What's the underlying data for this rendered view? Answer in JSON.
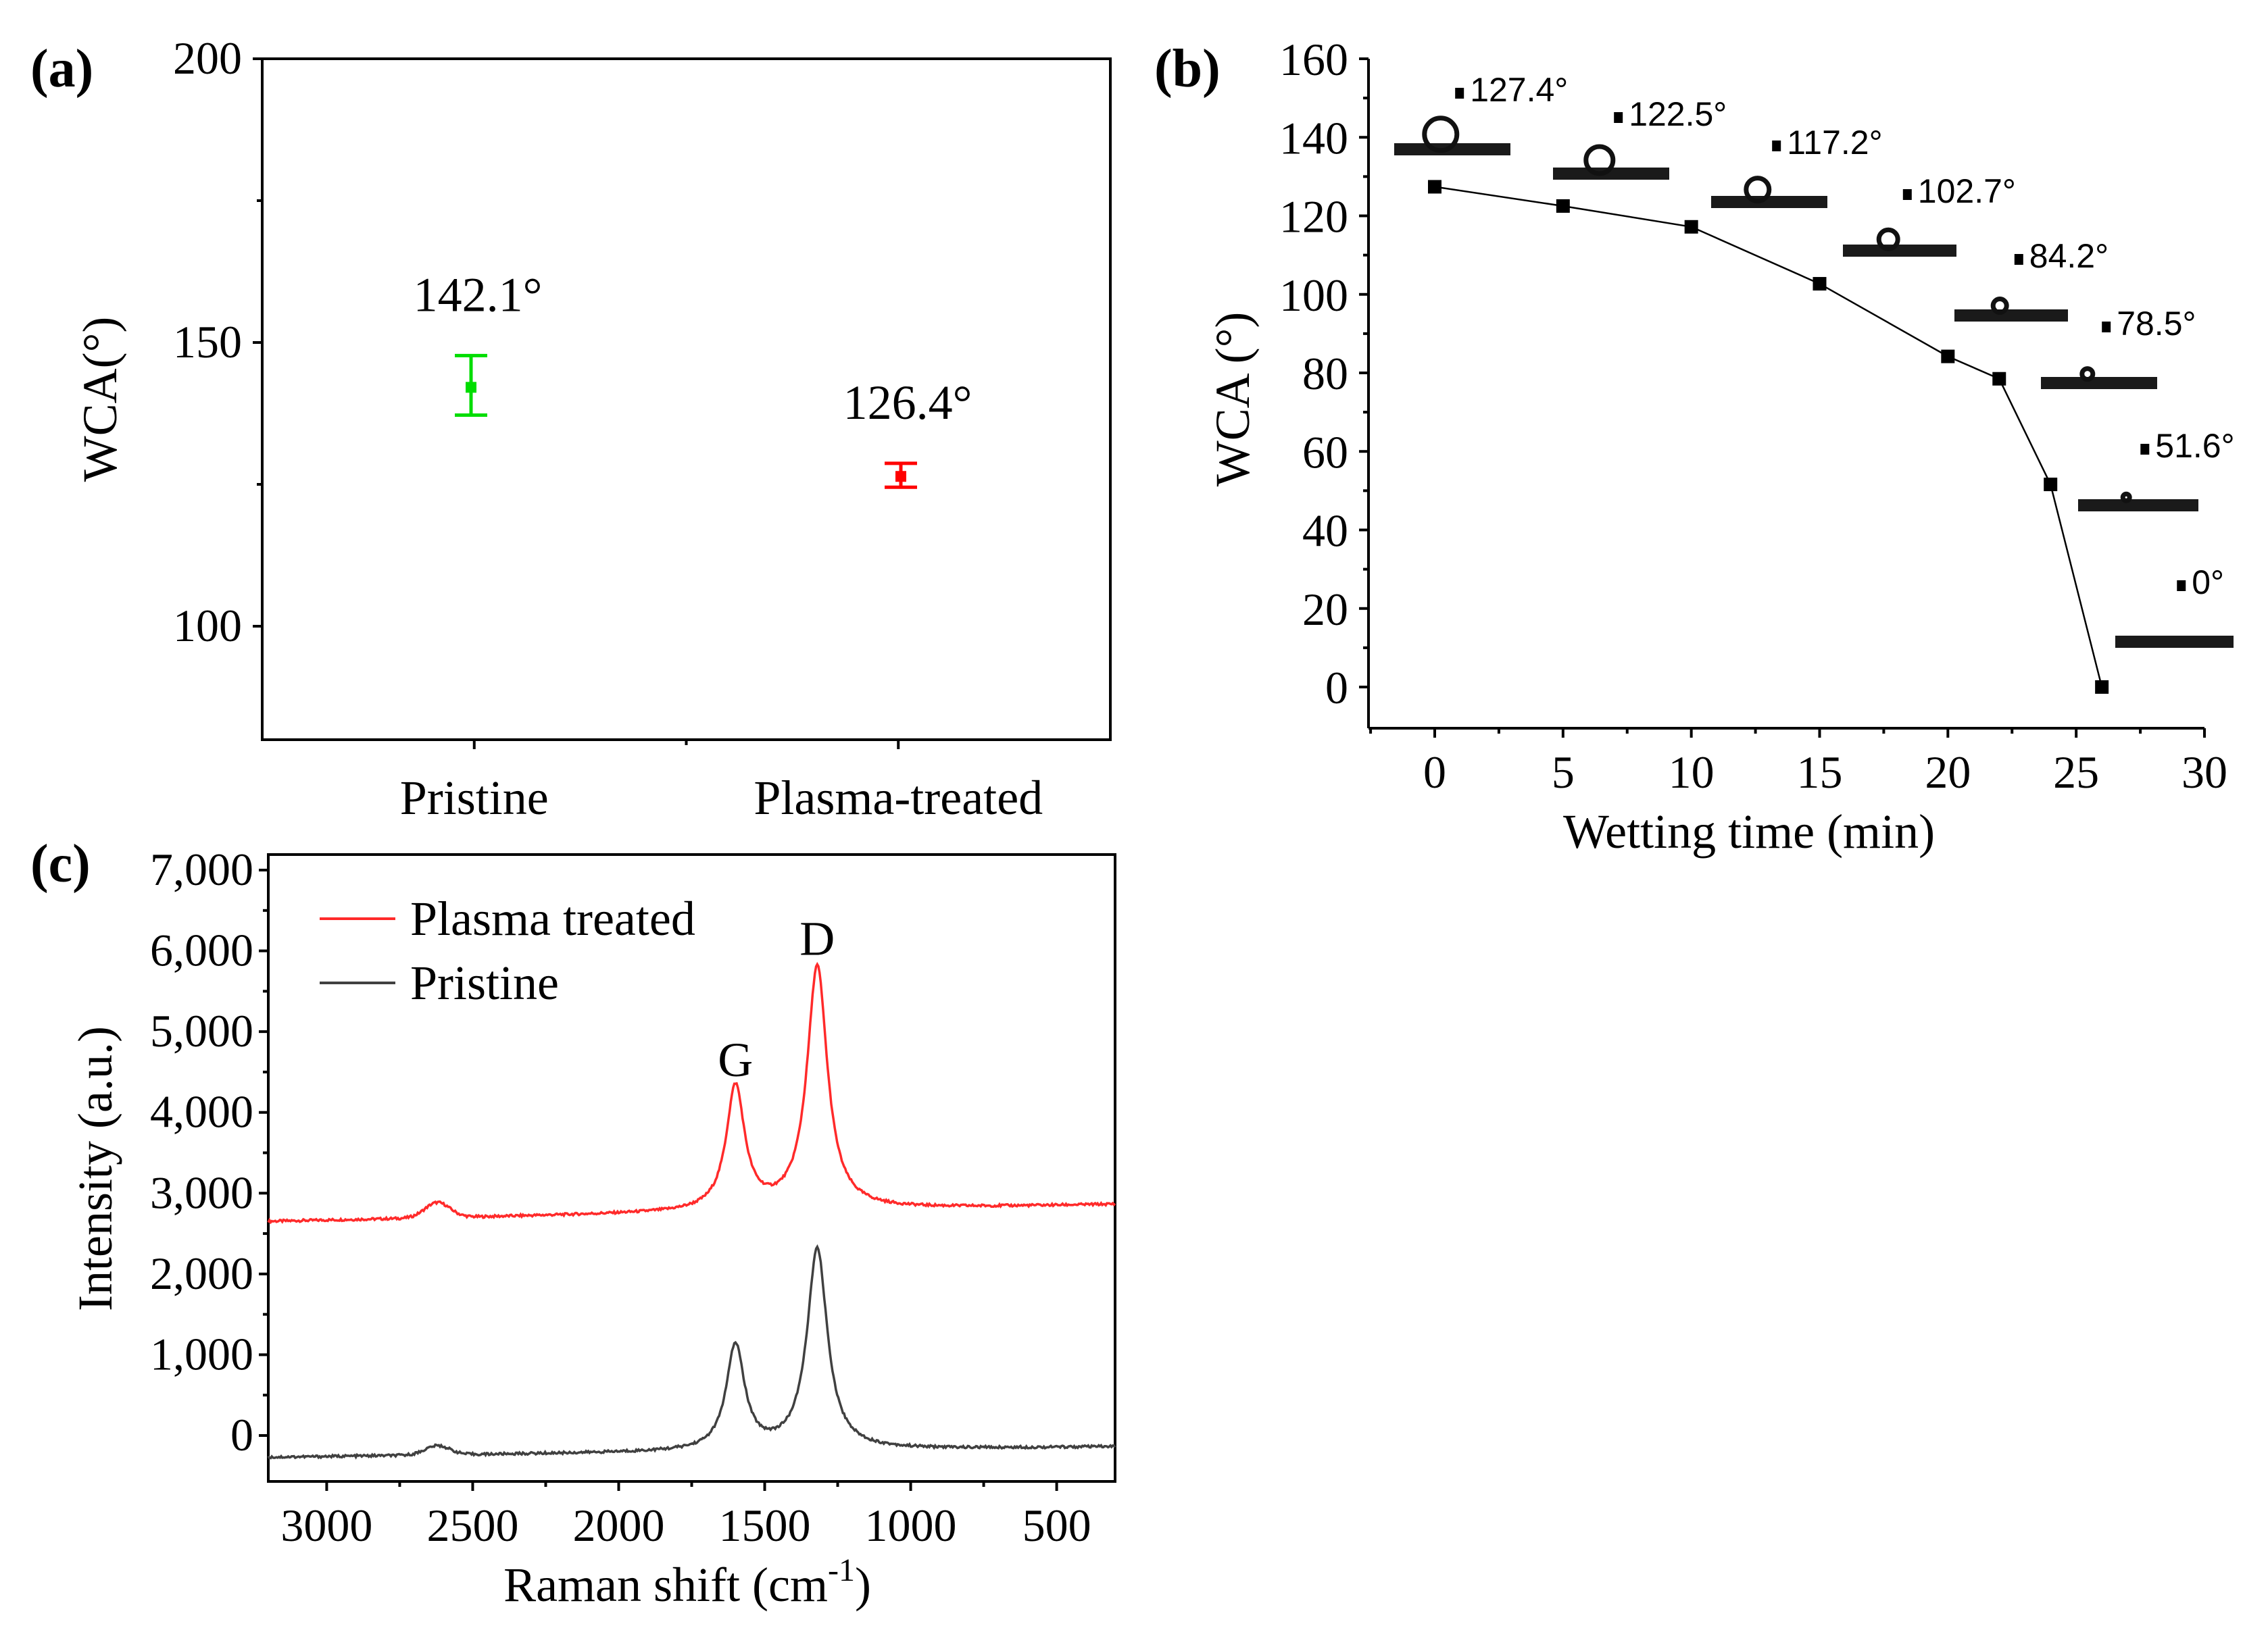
{
  "chart_data": [
    {
      "panel": "(a)",
      "type": "scatter",
      "title": "",
      "xlabel": "",
      "ylabel": "WCA(°)",
      "categories": [
        "Pristine",
        "Plasma-treated"
      ],
      "ylim": [
        80,
        200
      ],
      "yticks": [
        100,
        150,
        200
      ],
      "series": [
        {
          "name": "Pristine",
          "value": 142.1,
          "err_low": 137.2,
          "err_high": 147.7,
          "color": "#00dd00",
          "label": "142.1°"
        },
        {
          "name": "Plasma-treated",
          "value": 126.4,
          "err_low": 124.5,
          "err_high": 128.7,
          "color": "#ff0000",
          "label": "126.4°"
        }
      ]
    },
    {
      "panel": "(b)",
      "type": "line",
      "title": "",
      "xlabel": "Wetting time (min)",
      "ylabel": "WCA (°)",
      "xlim": [
        -2.5,
        30
      ],
      "ylim": [
        -10,
        160
      ],
      "xticks": [
        0,
        5,
        10,
        15,
        20,
        25,
        30
      ],
      "yticks": [
        0,
        20,
        40,
        60,
        80,
        100,
        120,
        140,
        160
      ],
      "x": [
        0,
        5,
        10,
        15,
        20,
        22,
        24,
        26
      ],
      "y": [
        127.4,
        122.5,
        117.2,
        102.7,
        84.2,
        78.5,
        51.6,
        0
      ],
      "color": "#000000",
      "droplet_labels": [
        "127.4°",
        "122.5°",
        "117.2°",
        "102.7°",
        "84.2°",
        "78.5°",
        "51.6°",
        "0°"
      ]
    },
    {
      "panel": "(c)",
      "type": "line",
      "title": "",
      "xlabel": "Raman shift (cm",
      "xlabel_sup": "-1",
      "xlabel_end": ")",
      "ylabel": "Intensity (a.u.)",
      "xlim": [
        3200,
        300
      ],
      "ylim": [
        -450,
        7000
      ],
      "xticks": [
        3000,
        2500,
        2000,
        1500,
        1000,
        500
      ],
      "yticks": [
        0,
        1000,
        2000,
        3000,
        4000,
        5000,
        6000,
        7000
      ],
      "ytick_labels": [
        "0",
        "1,000",
        "2,000",
        "3,000",
        "4,000",
        "5,000",
        "6,000",
        "7,000"
      ],
      "annotations": [
        {
          "text": "G",
          "x": 1600,
          "y": 4450
        },
        {
          "text": "D",
          "x": 1320,
          "y": 5950
        }
      ],
      "series": [
        {
          "name": "Plasma treated",
          "color": "#ff2a2a",
          "baseline_start": 2650,
          "baseline_end": 2860,
          "g_peak_x": 1600,
          "g_peak_y": 4300,
          "d_peak_x": 1320,
          "d_peak_y": 5800,
          "bump_x": 2620,
          "bump_y": 2880
        },
        {
          "name": "Pristine",
          "color": "#404040",
          "baseline_start": -270,
          "baseline_end": -140,
          "g_peak_x": 1600,
          "g_peak_y": 1100,
          "d_peak_x": 1320,
          "d_peak_y": 2300,
          "bump_x": 2620,
          "bump_y": -130
        }
      ]
    }
  ]
}
